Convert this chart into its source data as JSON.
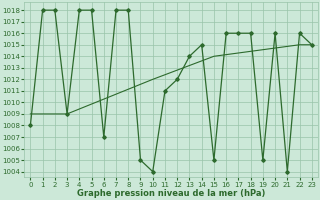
{
  "hours": [
    0,
    1,
    2,
    3,
    4,
    5,
    6,
    7,
    8,
    9,
    10,
    11,
    12,
    13,
    14,
    15,
    16,
    17,
    18,
    19,
    20,
    21,
    22,
    23
  ],
  "pressure": [
    1008,
    1018,
    1018,
    1009,
    1018,
    1018,
    1007,
    1018,
    1018,
    1005,
    1004,
    1011,
    1012,
    1014,
    1015,
    1005,
    1016,
    1016,
    1016,
    1005,
    1016,
    1004,
    1016,
    1015
  ],
  "trend_x": [
    0,
    3,
    10,
    15,
    22,
    23
  ],
  "trend_y": [
    1009,
    1009,
    1012,
    1014,
    1015,
    1015
  ],
  "line_color": "#2d6a2d",
  "bg_color": "#cce8d8",
  "grid_color": "#99c4aa",
  "yticks": [
    1004,
    1005,
    1006,
    1007,
    1008,
    1009,
    1010,
    1011,
    1012,
    1013,
    1014,
    1015,
    1016,
    1017,
    1018
  ],
  "xlabel_label": "Graphe pression niveau de la mer (hPa)",
  "ylim": [
    1003.5,
    1018.7
  ],
  "xlim": [
    -0.5,
    23.5
  ],
  "tick_fontsize": 5.0,
  "xlabel_fontsize": 6.0
}
